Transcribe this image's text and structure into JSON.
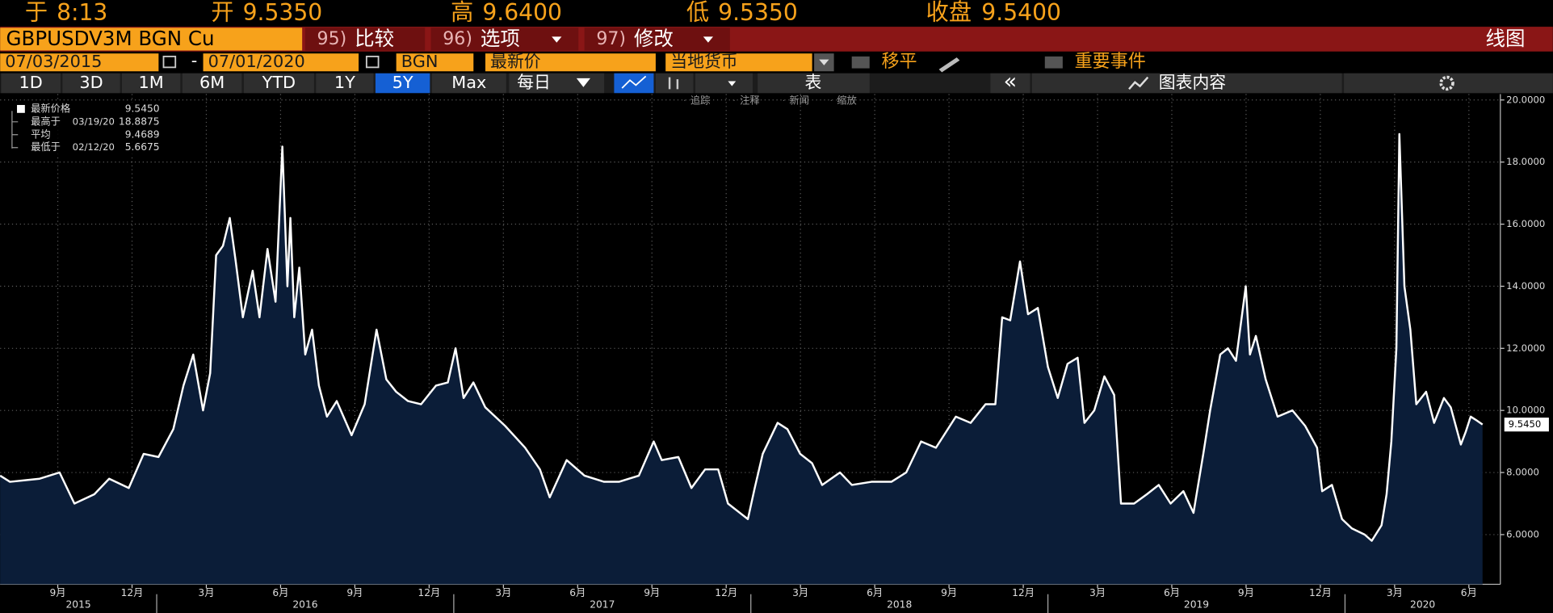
{
  "header": {
    "quote": [
      {
        "label": "于",
        "value": "8:13"
      },
      {
        "label": "开",
        "value": "9.5350"
      },
      {
        "label": "高",
        "value": "9.6400"
      },
      {
        "label": "低",
        "value": "9.5350"
      },
      {
        "label": "收盘",
        "value": "9.5400"
      }
    ],
    "ticker": "GBPUSDV3M BGN Cu",
    "menu": [
      {
        "key": "95)",
        "label": "比较"
      },
      {
        "key": "96)",
        "label": "选项"
      },
      {
        "key": "97)",
        "label": "修改"
      }
    ],
    "view": "线图"
  },
  "controls": {
    "start_date": "07/03/2015",
    "separator": "-",
    "end_date": "07/01/2020",
    "source": "BGN",
    "field": "最新价",
    "currency": "当地货币",
    "moving_avg": "移平",
    "events": "重要事件"
  },
  "toolbar": {
    "ranges": [
      {
        "label": "1D"
      },
      {
        "label": "3D"
      },
      {
        "label": "1M"
      },
      {
        "label": "6M"
      },
      {
        "label": "YTD"
      },
      {
        "label": "1Y"
      },
      {
        "label": "5Y",
        "selected": true
      },
      {
        "label": "Max"
      }
    ],
    "frequency": "每日",
    "table": "表",
    "collapse": "«",
    "chart_content": "图表内容"
  },
  "chart_tools": [
    "追踪",
    "注释",
    "新闻",
    "缩放"
  ],
  "chart_data": {
    "type": "line",
    "grid": true,
    "x": [
      2015.473,
      2015.506,
      2015.606,
      2015.673,
      2015.723,
      2015.79,
      2015.84,
      2015.906,
      2015.956,
      2016.006,
      2016.056,
      2016.09,
      2016.123,
      2016.156,
      2016.18,
      2016.2,
      2016.223,
      2016.246,
      2016.266,
      2016.29,
      2016.323,
      2016.346,
      2016.373,
      2016.4,
      2016.423,
      2016.44,
      2016.45,
      2016.463,
      2016.48,
      2016.5,
      2016.523,
      2016.546,
      2016.573,
      2016.606,
      2016.656,
      2016.7,
      2016.74,
      2016.773,
      2016.806,
      2016.846,
      2016.89,
      2016.94,
      2016.98,
      2017.006,
      2017.033,
      2017.066,
      2017.106,
      2017.173,
      2017.24,
      2017.29,
      2017.323,
      2017.38,
      2017.44,
      2017.506,
      2017.556,
      2017.623,
      2017.673,
      2017.7,
      2017.756,
      2017.8,
      2017.846,
      2017.89,
      2017.923,
      2017.99,
      2018.013,
      2018.04,
      2018.09,
      2018.123,
      2018.166,
      2018.206,
      2018.24,
      2018.3,
      2018.34,
      2018.406,
      2018.473,
      2018.523,
      2018.573,
      2018.623,
      2018.69,
      2018.74,
      2018.79,
      2018.823,
      2018.846,
      2018.873,
      2018.906,
      2018.933,
      2018.966,
      2019.0,
      2019.033,
      2019.066,
      2019.1,
      2019.123,
      2019.156,
      2019.19,
      2019.223,
      2019.246,
      2019.29,
      2019.333,
      2019.373,
      2019.413,
      2019.456,
      2019.49,
      2019.523,
      2019.546,
      2019.58,
      2019.606,
      2019.633,
      2019.666,
      2019.68,
      2019.7,
      2019.733,
      2019.773,
      2019.823,
      2019.866,
      2019.906,
      2019.923,
      2019.956,
      2019.99,
      2020.023,
      2020.066,
      2020.09,
      2020.123,
      2020.14,
      2020.156,
      2020.173,
      2020.183,
      2020.2,
      2020.22,
      2020.24,
      2020.273,
      2020.3,
      2020.333,
      2020.356,
      2020.39,
      2020.406,
      2020.423,
      2020.44,
      2020.463
    ],
    "series": [
      {
        "name": "最新价格",
        "color": "#ffffff",
        "fill": "#0b1d38",
        "latest": {
          "value": 9.545,
          "label": "9.5450"
        },
        "values": [
          7.9,
          7.7,
          7.8,
          8.0,
          7.0,
          7.3,
          7.8,
          7.5,
          8.6,
          8.5,
          9.4,
          10.8,
          11.8,
          10.0,
          11.2,
          15.0,
          15.3,
          16.2,
          14.8,
          13.0,
          14.5,
          13.0,
          15.2,
          13.5,
          18.5,
          14.0,
          16.2,
          13.0,
          14.6,
          11.8,
          12.6,
          10.8,
          9.8,
          10.3,
          9.2,
          10.2,
          12.6,
          11.0,
          10.6,
          10.3,
          10.2,
          10.8,
          10.9,
          12.0,
          10.4,
          10.9,
          10.1,
          9.5,
          8.8,
          8.1,
          7.2,
          8.4,
          7.9,
          7.7,
          7.7,
          7.9,
          9.0,
          8.4,
          8.5,
          7.5,
          8.1,
          8.1,
          7.0,
          6.5,
          7.5,
          8.6,
          9.6,
          9.4,
          8.6,
          8.3,
          7.6,
          8.0,
          7.6,
          7.7,
          7.7,
          8.0,
          9.0,
          8.8,
          9.8,
          9.6,
          10.2,
          10.2,
          13.0,
          12.9,
          14.8,
          13.1,
          13.3,
          11.4,
          10.4,
          11.5,
          11.7,
          9.6,
          10.0,
          11.1,
          10.5,
          7.0,
          7.0,
          7.3,
          7.6,
          7.0,
          7.4,
          6.7,
          8.6,
          10.0,
          11.8,
          12.0,
          11.6,
          14.0,
          11.8,
          12.4,
          11.0,
          9.8,
          10.0,
          9.5,
          8.8,
          7.4,
          7.6,
          6.5,
          6.2,
          6.0,
          5.8,
          6.3,
          7.3,
          9.0,
          12.0,
          18.9,
          14.0,
          12.6,
          10.2,
          10.6,
          9.6,
          10.4,
          10.1,
          8.9,
          9.3,
          9.8,
          9.7,
          9.545
        ]
      }
    ],
    "legend_stats": [
      {
        "label": "最高于",
        "date": "03/19/20",
        "value": 18.8875
      },
      {
        "label": "平均",
        "value": 9.4689
      },
      {
        "label": "最低于",
        "date": "02/12/20",
        "value": 5.6675
      }
    ],
    "xlim": [
      2015.473,
      2020.523
    ],
    "ylim": [
      4.4,
      20.19
    ],
    "yticks": [
      {
        "value": 6,
        "label": "6.0000"
      },
      {
        "value": 8,
        "label": "8.0000"
      },
      {
        "value": 10,
        "label": "10.0000"
      },
      {
        "value": 12,
        "label": "12.0000"
      },
      {
        "value": 14,
        "label": "14.0000"
      },
      {
        "value": 16,
        "label": "16.0000"
      },
      {
        "value": 18,
        "label": "18.0000"
      },
      {
        "value": 20,
        "label": "20.0000"
      }
    ],
    "xticks": [
      {
        "value": 2015.667,
        "label": "9月"
      },
      {
        "value": 2015.917,
        "label": "12月"
      },
      {
        "value": 2016.167,
        "label": "3月"
      },
      {
        "value": 2016.417,
        "label": "6月"
      },
      {
        "value": 2016.667,
        "label": "9月"
      },
      {
        "value": 2016.917,
        "label": "12月"
      },
      {
        "value": 2017.167,
        "label": "3月"
      },
      {
        "value": 2017.417,
        "label": "6月"
      },
      {
        "value": 2017.667,
        "label": "9月"
      },
      {
        "value": 2017.917,
        "label": "12月"
      },
      {
        "value": 2018.167,
        "label": "3月"
      },
      {
        "value": 2018.417,
        "label": "6月"
      },
      {
        "value": 2018.667,
        "label": "9月"
      },
      {
        "value": 2018.917,
        "label": "12月"
      },
      {
        "value": 2019.167,
        "label": "3月"
      },
      {
        "value": 2019.417,
        "label": "6月"
      },
      {
        "value": 2019.667,
        "label": "9月"
      },
      {
        "value": 2019.917,
        "label": "12月"
      },
      {
        "value": 2020.167,
        "label": "3月"
      },
      {
        "value": 2020.417,
        "label": "6月"
      }
    ],
    "year_ticks": [
      2015,
      2016,
      2017,
      2018,
      2019,
      2020
    ]
  }
}
